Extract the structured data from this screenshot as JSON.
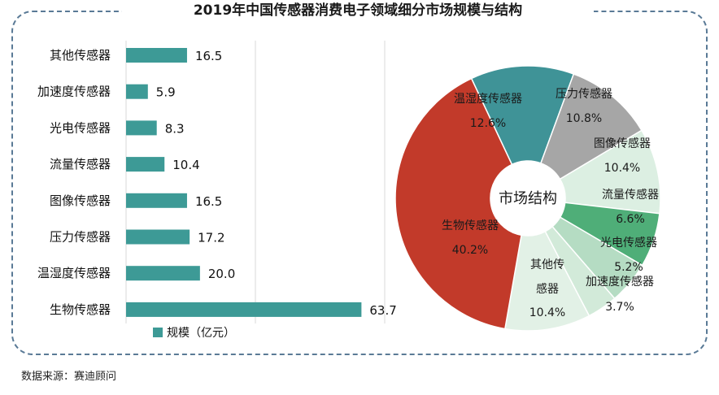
{
  "title": "2019年中国传感器消费电子领域细分市场规模与结构",
  "source": "数据来源：赛迪顾问",
  "chart_data": [
    {
      "type": "bar",
      "orientation": "horizontal",
      "categories": [
        "其他传感器",
        "加速度传感器",
        "光电传感器",
        "流量传感器",
        "图像传感器",
        "压力传感器",
        "温湿度传感器",
        "生物传感器"
      ],
      "values": [
        16.5,
        5.9,
        8.3,
        10.4,
        16.5,
        17.2,
        20.0,
        63.7
      ],
      "value_labels": [
        "16.5",
        "5.9",
        "8.3",
        "10.4",
        "16.5",
        "17.2",
        "20.0",
        "63.7"
      ],
      "series_name": "规模（亿元）",
      "xlim": [
        0,
        70
      ],
      "grid": true,
      "legend": "bottom",
      "color": "#3d9a96"
    },
    {
      "type": "pie",
      "variant": "donut",
      "center_label": "市场结构",
      "slices": [
        {
          "label": "温湿度传感器",
          "percent_label": "12.6%",
          "value": 12.6,
          "color": "#3f9397"
        },
        {
          "label": "压力传感器",
          "percent_label": "10.8%",
          "value": 10.8,
          "color": "#a6a6a6"
        },
        {
          "label": "图像传感器",
          "percent_label": "10.4%",
          "value": 10.4,
          "color": "#dcefe2"
        },
        {
          "label": "流量传感器",
          "percent_label": "6.6%",
          "value": 6.6,
          "color": "#4fae78"
        },
        {
          "label": "光电传感器",
          "percent_label": "5.2%",
          "value": 5.2,
          "color": "#b5dcc3"
        },
        {
          "label": "加速度传感器",
          "percent_label": "3.7%",
          "value": 3.7,
          "color": "#d2ead9"
        },
        {
          "label": "其他传感器",
          "percent_label": "10.4%",
          "value": 10.4,
          "color": "#e2f1e6"
        },
        {
          "label": "生物传感器",
          "percent_label": "40.2%",
          "value": 40.2,
          "color": "#c23a2a"
        }
      ]
    }
  ]
}
